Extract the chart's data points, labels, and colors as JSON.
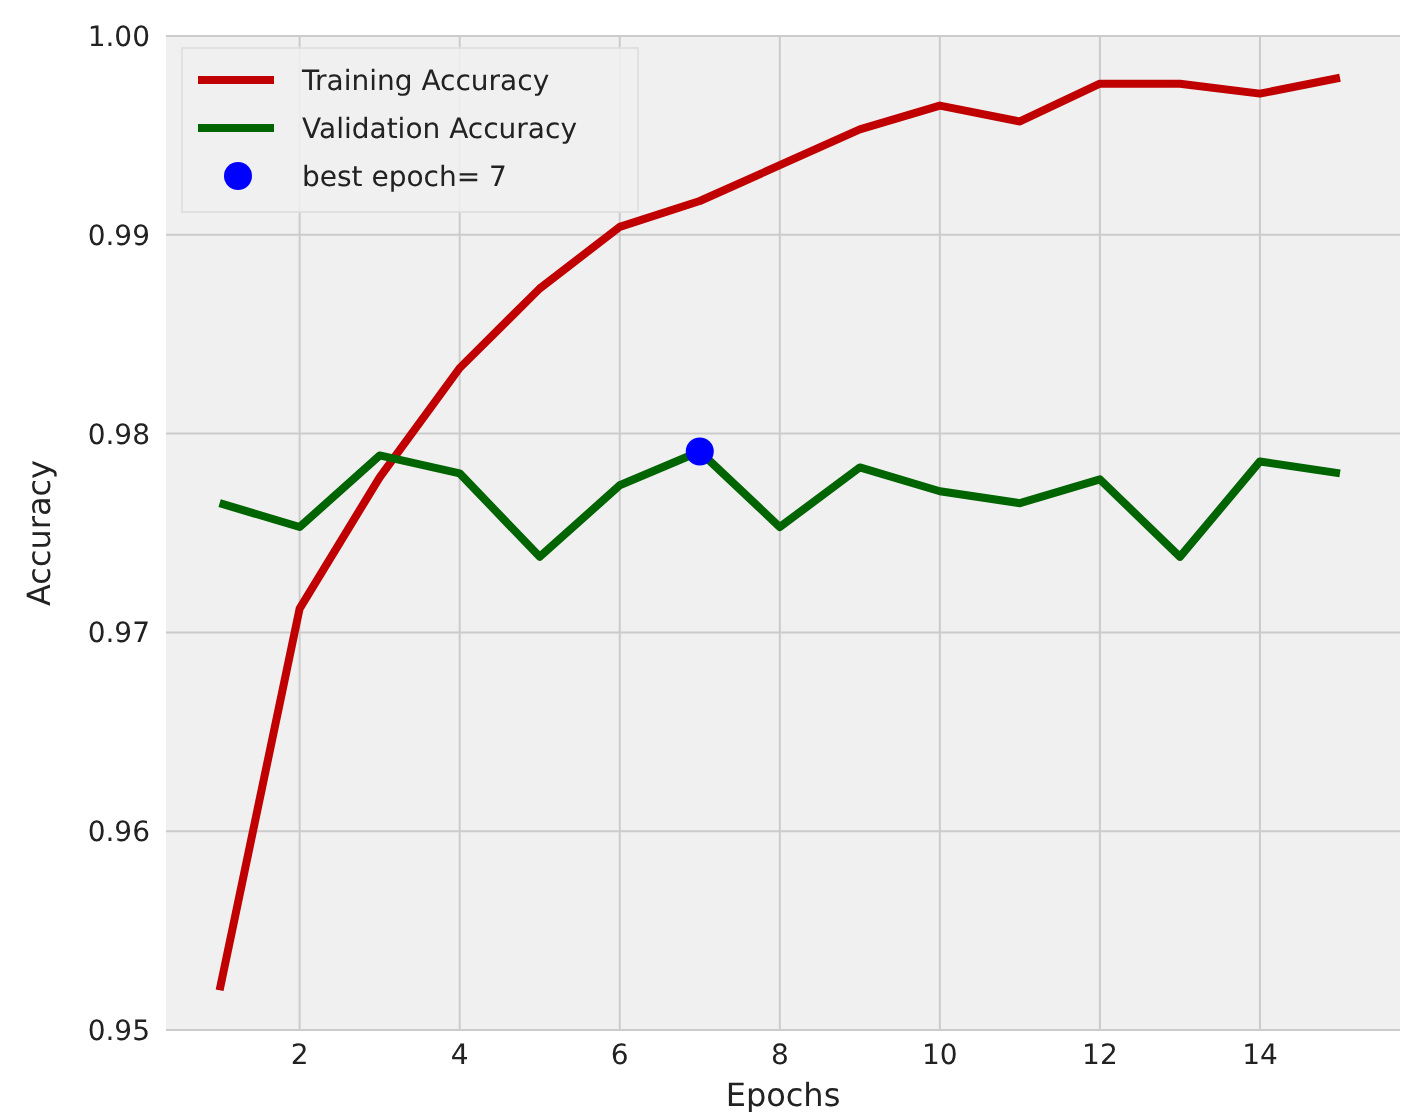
{
  "chart_data": {
    "type": "line",
    "xlabel": "Epochs",
    "ylabel": "Accuracy",
    "x": [
      1,
      2,
      3,
      4,
      5,
      6,
      7,
      8,
      9,
      10,
      11,
      12,
      13,
      14,
      15
    ],
    "series": [
      {
        "name": "Training Accuracy",
        "color": "#c00000",
        "values": [
          0.952,
          0.9712,
          0.9778,
          0.9833,
          0.9873,
          0.9904,
          0.9917,
          0.9935,
          0.9953,
          0.9965,
          0.9957,
          0.9976,
          0.9976,
          0.9971,
          0.9979
        ]
      },
      {
        "name": "Validation Accuracy",
        "color": "#006400",
        "values": [
          0.9765,
          0.9753,
          0.9789,
          0.978,
          0.9738,
          0.9774,
          0.9791,
          0.9753,
          0.9783,
          0.9771,
          0.9765,
          0.9777,
          0.9738,
          0.9786,
          0.978
        ]
      },
      {
        "name": "best epoch= 7",
        "type": "scatter",
        "color": "#0000ff",
        "x": [
          7
        ],
        "values": [
          0.9791
        ],
        "marker": "circle"
      }
    ],
    "xlim": [
      0.33,
      15.75
    ],
    "ylim": [
      0.95,
      1.0
    ],
    "xticks": [
      2,
      4,
      6,
      8,
      10,
      12,
      14
    ],
    "yticks": [
      0.95,
      0.96,
      0.97,
      0.98,
      0.99,
      {
        "value": 1.0,
        "label": "1.00"
      }
    ],
    "grid": true,
    "legend": "top left"
  }
}
